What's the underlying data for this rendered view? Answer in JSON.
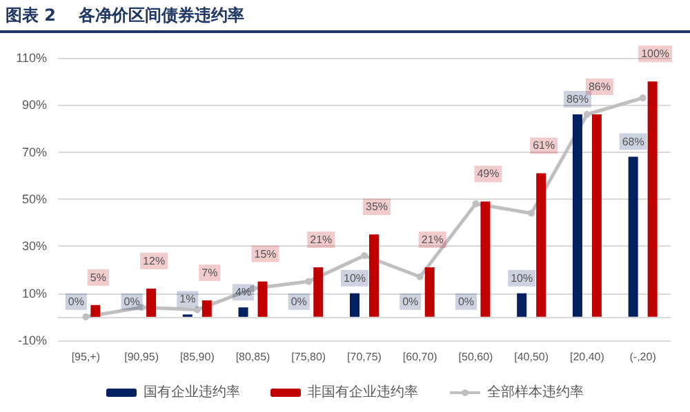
{
  "chart_data": {
    "type": "bar",
    "title": "图表 2    各净价区间债券违约率",
    "categories": [
      "[95,+)",
      "[90,95)",
      "[85,90)",
      "[80,85)",
      "[75,80)",
      "[70,75)",
      "[60,70)",
      "[50,60)",
      "[40,50)",
      "[20,40)",
      "(-,20)"
    ],
    "series": [
      {
        "name": "国有企业违约率",
        "color": "#002060",
        "values": [
          0,
          0,
          1,
          4,
          0,
          10,
          0,
          0,
          10,
          86,
          68
        ],
        "value_labels": [
          "0%",
          "0%",
          "1%",
          "4%",
          "0%",
          "10%",
          "0%",
          "0%",
          "10%",
          "86%",
          "68%"
        ]
      },
      {
        "name": "非国有企业违约率",
        "color": "#c00000",
        "values": [
          5,
          12,
          7,
          15,
          21,
          35,
          21,
          49,
          61,
          86,
          100
        ],
        "value_labels": [
          "5%",
          "12%",
          "7%",
          "15%",
          "21%",
          "35%",
          "21%",
          "49%",
          "61%",
          "86%",
          "100%"
        ]
      },
      {
        "name": "全部样本违约率",
        "type": "line",
        "color": "#bfbfbf",
        "marker": "circle",
        "values": [
          0,
          4,
          3,
          12,
          15,
          26,
          17,
          48,
          44,
          86,
          93
        ]
      }
    ],
    "ylim": [
      -10,
      110
    ],
    "yticks": [
      {
        "value": -10,
        "label": "-10%"
      },
      {
        "value": 10,
        "label": "10%"
      },
      {
        "value": 30,
        "label": "30%"
      },
      {
        "value": 50,
        "label": "50%"
      },
      {
        "value": 70,
        "label": "70%"
      },
      {
        "value": 90,
        "label": "90%"
      },
      {
        "value": 110,
        "label": "110%"
      }
    ],
    "grid": "y",
    "legend": "bottom"
  }
}
